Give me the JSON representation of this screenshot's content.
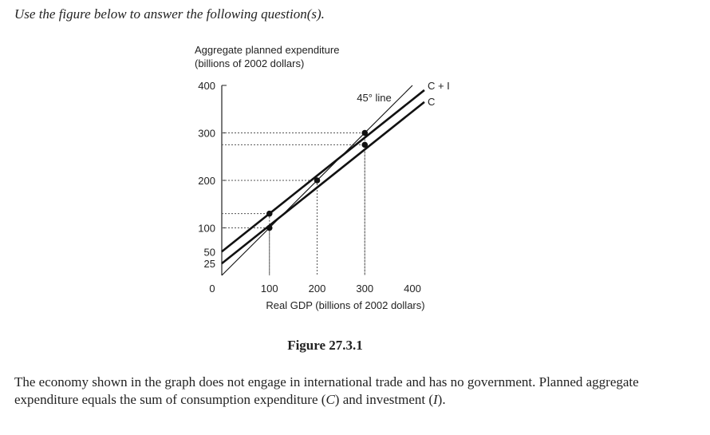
{
  "instruction": "Use the figure below to answer the following question(s).",
  "caption": "Figure 27.3.1",
  "paragraph": {
    "part1": "The economy shown in the graph does not engage in international trade and has no government. Planned aggregate expenditure equals the sum of consumption expenditure (",
    "c_symbol": "C",
    "part2": ") and investment (",
    "i_symbol": "I",
    "part3": ")."
  },
  "chart_data": {
    "type": "line",
    "ylabel_line1": "Aggregate planned expenditure",
    "ylabel_line2": "(billions of 2002 dollars)",
    "xlabel": "Real GDP (billions of 2002 dollars)",
    "xlim": [
      0,
      400
    ],
    "ylim": [
      0,
      400
    ],
    "origin_label": "0",
    "x_ticks": [
      {
        "value": 100,
        "label": "100"
      },
      {
        "value": 200,
        "label": "200"
      },
      {
        "value": 300,
        "label": "300"
      },
      {
        "value": 400,
        "label": "400"
      }
    ],
    "y_ticks": [
      {
        "value": 25,
        "label": "25"
      },
      {
        "value": 50,
        "label": "50"
      },
      {
        "value": 100,
        "label": "100"
      },
      {
        "value": 200,
        "label": "200"
      },
      {
        "value": 300,
        "label": "300"
      },
      {
        "value": 400,
        "label": "400"
      }
    ],
    "series": [
      {
        "name": "45° line",
        "x": [
          0,
          400
        ],
        "y": [
          0,
          400
        ]
      },
      {
        "name": "C + I",
        "x": [
          0,
          425
        ],
        "y": [
          50,
          390
        ]
      },
      {
        "name": "C",
        "x": [
          0,
          425
        ],
        "y": [
          25,
          365
        ]
      }
    ],
    "points": [
      {
        "x": 100,
        "y": 100
      },
      {
        "x": 100,
        "y": 130
      },
      {
        "x": 200,
        "y": 200
      },
      {
        "x": 300,
        "y": 275
      },
      {
        "x": 300,
        "y": 300
      }
    ],
    "guides": [
      {
        "x": 100,
        "y": 130
      },
      {
        "x": 100,
        "y": 100
      },
      {
        "x": 200,
        "y": 200
      },
      {
        "x": 300,
        "y": 300
      },
      {
        "x": 300,
        "y": 275
      }
    ]
  }
}
